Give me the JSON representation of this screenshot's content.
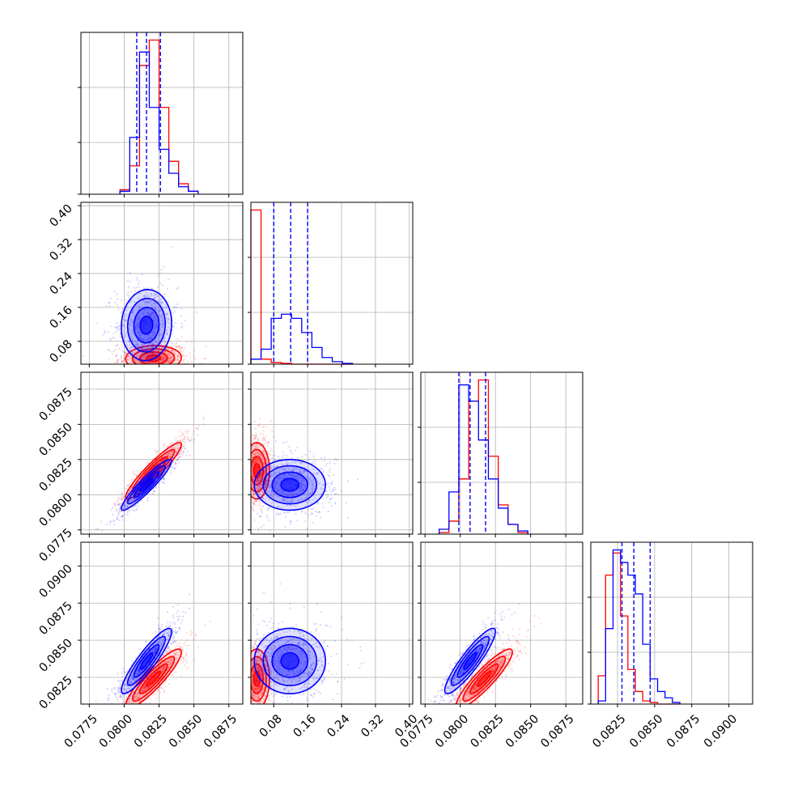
{
  "chart_data": {
    "type": "corner",
    "parameters": 4,
    "grid": true,
    "colors": {
      "blue": "#0000ff",
      "red": "#ff0000"
    },
    "series": [
      {
        "color": "blue",
        "mean": [
          0.0816,
          0.118,
          0.0807,
          0.0836
        ],
        "sd": [
          0.0009,
          0.042,
          0.0009,
          0.0011
        ]
      },
      {
        "color": "red",
        "mean": [
          0.0821,
          0.04,
          0.0817,
          0.0824
        ],
        "sd": [
          0.001,
          0.015,
          0.001,
          0.001
        ]
      }
    ],
    "quantile_lines": {
      "color": "blue",
      "values": [
        [
          0.0809,
          0.0816,
          0.0826
        ],
        [
          0.08,
          0.12,
          0.16
        ],
        [
          0.0799,
          0.0807,
          0.0818
        ],
        [
          0.0828,
          0.0836,
          0.0847
        ]
      ]
    },
    "axes": [
      {
        "lim": [
          0.0769,
          0.0885
        ],
        "ticks": [
          0.0775,
          0.08,
          0.0825,
          0.085,
          0.0875
        ],
        "tick_labels": [
          "0.0775",
          "0.0800",
          "0.0825",
          "0.0850",
          "0.0875"
        ]
      },
      {
        "lim": [
          0.026,
          0.408
        ],
        "ticks": [
          0.08,
          0.16,
          0.24,
          0.32,
          0.4
        ],
        "tick_labels": [
          "0.08",
          "0.16",
          "0.24",
          "0.32",
          "0.40"
        ]
      },
      {
        "lim": [
          0.0772,
          0.0887
        ],
        "ticks": [
          0.0775,
          0.08,
          0.0825,
          0.085,
          0.0875
        ],
        "tick_labels": [
          "0.0775",
          "0.0800",
          "0.0825",
          "0.0850",
          "0.0875"
        ]
      },
      {
        "lim": [
          0.0807,
          0.0916
        ],
        "ticks": [
          0.0825,
          0.085,
          0.0875,
          0.09
        ],
        "tick_labels": [
          "0.0825",
          "0.0850",
          "0.0875",
          "0.0900"
        ]
      }
    ],
    "histograms": [
      {
        "bins": [
          0.0797,
          0.0804,
          0.0811,
          0.0818,
          0.0825,
          0.0832,
          0.0839,
          0.0846,
          0.0853
        ],
        "blue": [
          2,
          38,
          95,
          58,
          30,
          14,
          5,
          2
        ],
        "red": [
          3,
          19,
          86,
          103,
          58,
          22,
          7,
          2
        ]
      },
      {
        "bins": [
          0.026,
          0.05,
          0.074,
          0.098,
          0.122,
          0.146,
          0.17,
          0.194,
          0.218,
          0.242,
          0.266
        ],
        "blue": [
          6,
          18,
          55,
          60,
          55,
          38,
          20,
          8,
          3,
          1
        ],
        "red": [
          185,
          6,
          2,
          1,
          0,
          0,
          0,
          0,
          0,
          0
        ]
      },
      {
        "bins": [
          0.0785,
          0.0792,
          0.0799,
          0.0806,
          0.0813,
          0.082,
          0.0827,
          0.0834,
          0.0841,
          0.0848
        ],
        "blue": [
          3,
          26,
          92,
          82,
          58,
          34,
          16,
          6,
          2
        ],
        "red": [
          1,
          8,
          34,
          82,
          95,
          48,
          18,
          6,
          1
        ]
      },
      {
        "bins": [
          0.0812,
          0.0817,
          0.0822,
          0.0827,
          0.0832,
          0.0837,
          0.0842,
          0.0847,
          0.0852,
          0.0857,
          0.0862,
          0.0867
        ],
        "blue": [
          2,
          48,
          98,
          90,
          82,
          70,
          38,
          16,
          8,
          4,
          1
        ],
        "red": [
          18,
          82,
          96,
          56,
          22,
          8,
          2,
          1,
          0,
          0,
          0
        ]
      }
    ]
  }
}
